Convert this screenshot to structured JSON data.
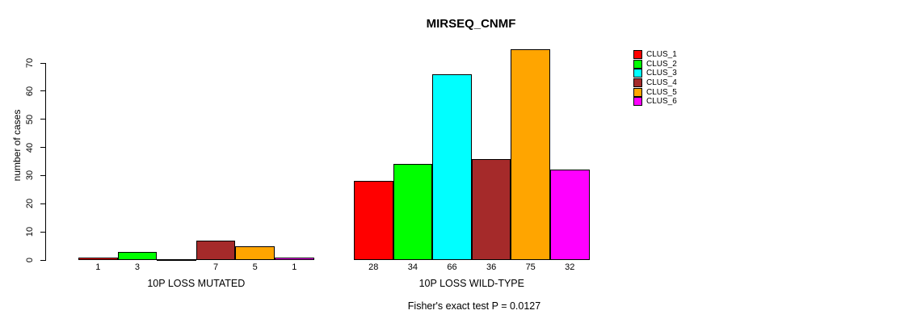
{
  "chart_data": {
    "type": "bar",
    "title": "MIRSEQ_CNMF",
    "ylabel": "number of cases",
    "xlabel": "",
    "ylim": [
      0,
      70
    ],
    "yticks": [
      0,
      10,
      20,
      30,
      40,
      50,
      60,
      70
    ],
    "grid": false,
    "legend_position": "right",
    "categories": [
      "10P LOSS MUTATED",
      "10P LOSS WILD-TYPE"
    ],
    "series": [
      {
        "name": "CLUS_1",
        "color": "#ff0000",
        "values": [
          1,
          28
        ]
      },
      {
        "name": "CLUS_2",
        "color": "#00ff00",
        "values": [
          3,
          34
        ]
      },
      {
        "name": "CLUS_3",
        "color": "#00ffff",
        "values": [
          0,
          66
        ]
      },
      {
        "name": "CLUS_4",
        "color": "#a52a2a",
        "values": [
          7,
          36
        ]
      },
      {
        "name": "CLUS_5",
        "color": "#ffa500",
        "values": [
          5,
          75
        ]
      },
      {
        "name": "CLUS_6",
        "color": "#ff00ff",
        "values": [
          1,
          32
        ]
      }
    ],
    "annotation": "Fisher's exact test P = 0.0127"
  }
}
